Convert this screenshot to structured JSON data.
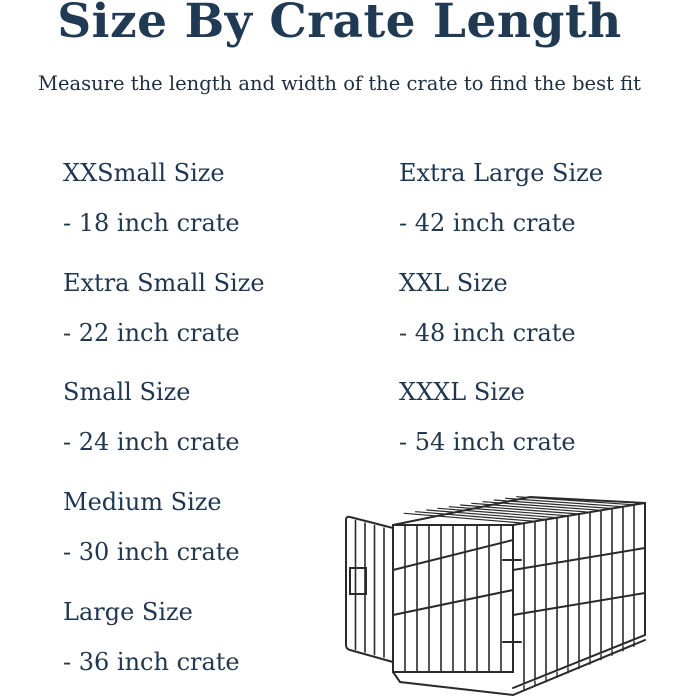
{
  "title": "Size By Crate Length",
  "subtitle": "Measure the length and width of the crate to find the best fit",
  "sizes": [
    {
      "name": "XXSmall Size",
      "crate": "- 18 inch crate"
    },
    {
      "name": "Extra Small Size",
      "crate": "- 22 inch crate"
    },
    {
      "name": "Small Size",
      "crate": "- 24 inch crate"
    },
    {
      "name": "Medium Size",
      "crate": "- 30 inch crate"
    },
    {
      "name": "Large Size",
      "crate": "- 36 inch crate"
    },
    {
      "name": "Extra Large Size",
      "crate": "- 42 inch crate"
    },
    {
      "name": "XXL Size",
      "crate": "- 48 inch crate"
    },
    {
      "name": "XXXL Size",
      "crate": "- 54 inch crate"
    }
  ],
  "colors": {
    "text": "#1f3a52",
    "crate": "#2a2a2a"
  },
  "illustration": "wire-dog-crate-icon"
}
